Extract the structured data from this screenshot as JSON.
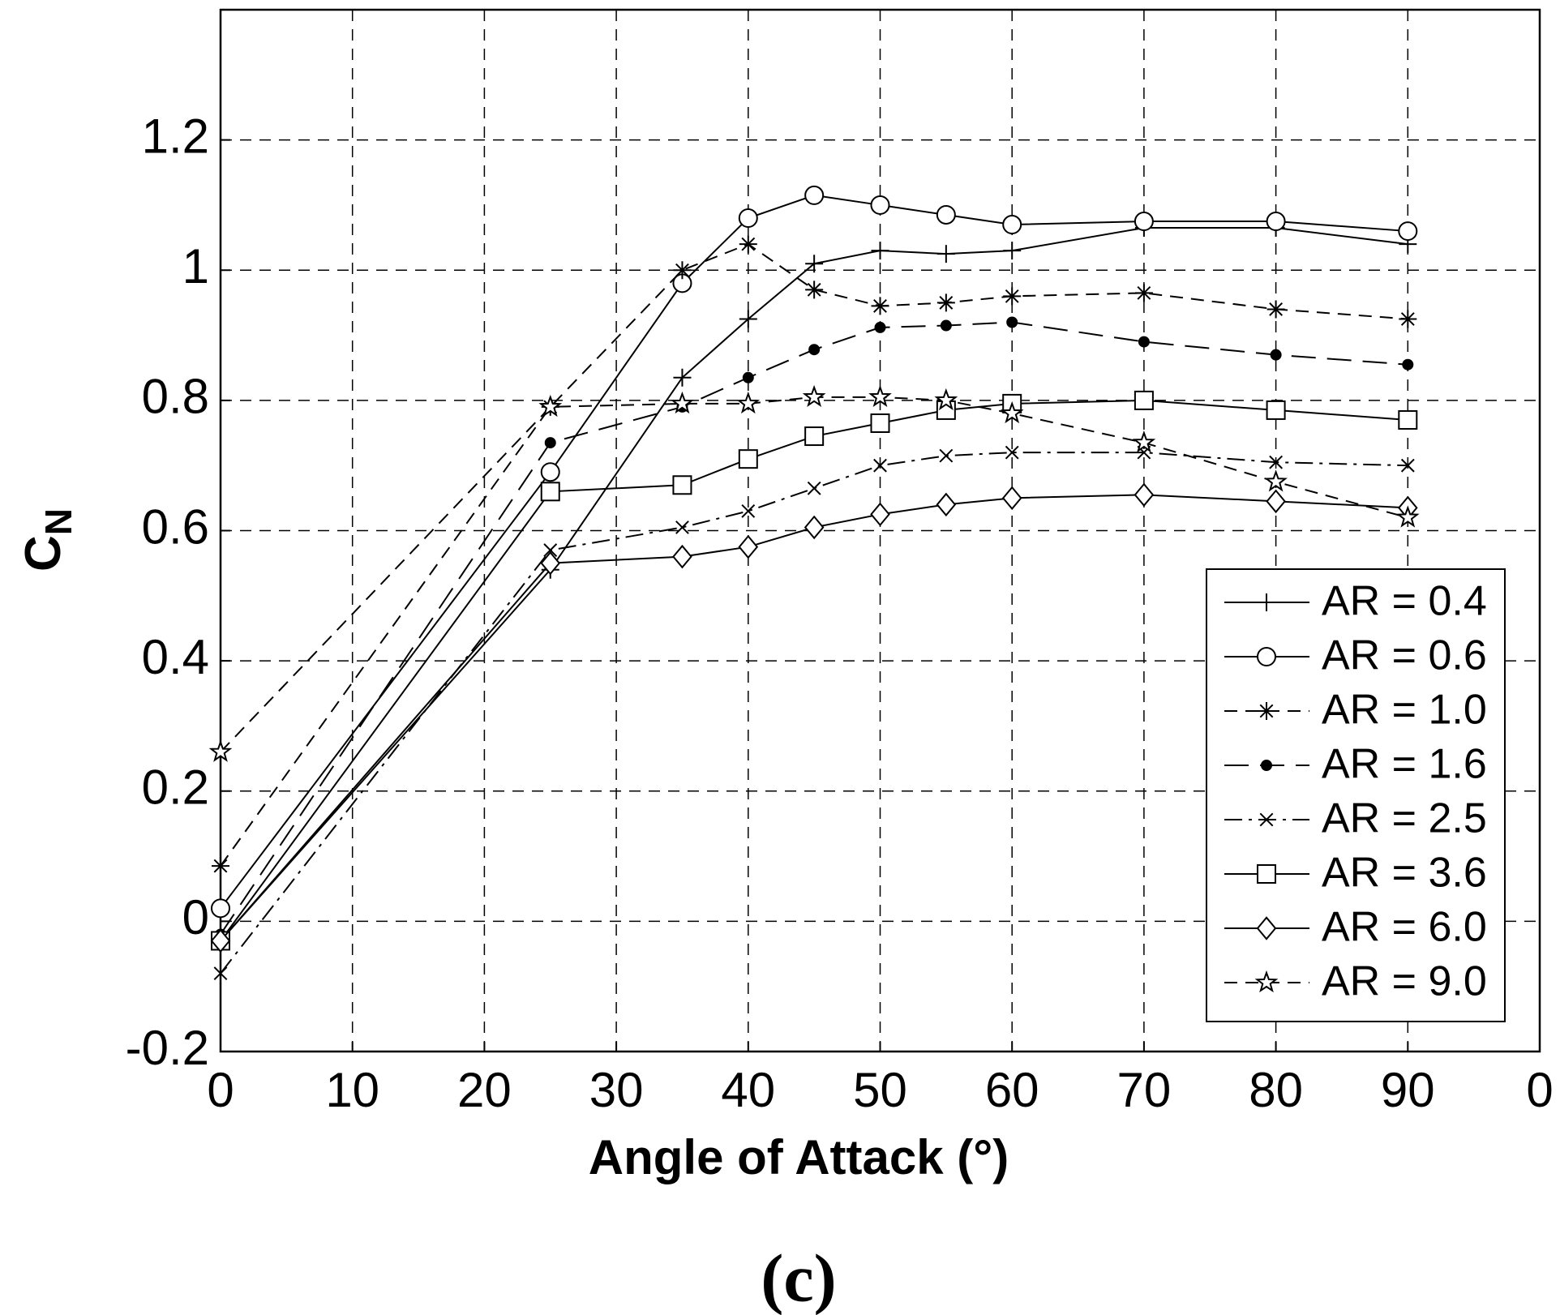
{
  "chart_data": {
    "type": "line",
    "xlabel": "Angle of Attack (°)",
    "ylabel": "C",
    "ylabel_subscript": "N",
    "caption": "(c)",
    "x": [
      0,
      25,
      35,
      40,
      45,
      50,
      55,
      60,
      70,
      80,
      90
    ],
    "xlim": [
      0,
      100
    ],
    "xticks": [
      0,
      10,
      20,
      30,
      40,
      50,
      60,
      70,
      80,
      90,
      {
        "value": 100,
        "label": "0"
      }
    ],
    "ylim": [
      -0.2,
      1.4
    ],
    "yticks": [
      -0.2,
      0,
      0.2,
      0.4,
      0.6,
      0.8,
      1,
      1.2
    ],
    "grid": true,
    "legend": "lower right",
    "series": [
      {
        "name": "AR = 0.4",
        "color": "#000000",
        "marker": "plus",
        "line_style": "solid",
        "values": [
          -0.03,
          0.54,
          0.835,
          0.925,
          1.01,
          1.03,
          1.025,
          1.03,
          1.065,
          1.065,
          1.04
        ]
      },
      {
        "name": "AR = 0.6",
        "color": "#000000",
        "marker": "circle",
        "line_style": "solid",
        "values": [
          0.02,
          0.69,
          0.98,
          1.08,
          1.115,
          1.1,
          1.085,
          1.07,
          1.075,
          1.075,
          1.06
        ]
      },
      {
        "name": "AR = 1.0",
        "color": "#000000",
        "marker": "asterisk",
        "line_style": "dashed",
        "values": [
          0.085,
          0.79,
          1.0,
          1.04,
          0.97,
          0.945,
          0.95,
          0.96,
          0.965,
          0.94,
          0.925
        ]
      },
      {
        "name": "AR = 1.6",
        "color": "#000000",
        "marker": "dot",
        "line_style": "longdash",
        "values": [
          -0.02,
          0.735,
          0.79,
          0.835,
          0.878,
          0.912,
          0.915,
          0.92,
          0.89,
          0.87,
          0.855
        ]
      },
      {
        "name": "AR = 2.5",
        "color": "#000000",
        "marker": "x",
        "line_style": "dashdot",
        "values": [
          -0.08,
          0.57,
          0.605,
          0.63,
          0.665,
          0.7,
          0.715,
          0.72,
          0.72,
          0.705,
          0.7
        ]
      },
      {
        "name": "AR = 3.6",
        "color": "#000000",
        "marker": "square",
        "line_style": "solid",
        "values": [
          -0.03,
          0.66,
          0.67,
          0.71,
          0.745,
          0.765,
          0.785,
          0.795,
          0.8,
          0.785,
          0.77
        ]
      },
      {
        "name": "AR = 6.0",
        "color": "#000000",
        "marker": "diamond",
        "line_style": "solid",
        "values": [
          -0.03,
          0.55,
          0.56,
          0.575,
          0.605,
          0.625,
          0.64,
          0.65,
          0.655,
          0.645,
          0.635
        ]
      },
      {
        "name": "AR = 9.0",
        "color": "#000000",
        "marker": "star",
        "line_style": "dashed",
        "values": [
          0.26,
          0.79,
          0.795,
          0.795,
          0.805,
          0.805,
          0.8,
          0.78,
          0.735,
          0.675,
          0.62
        ]
      }
    ]
  }
}
